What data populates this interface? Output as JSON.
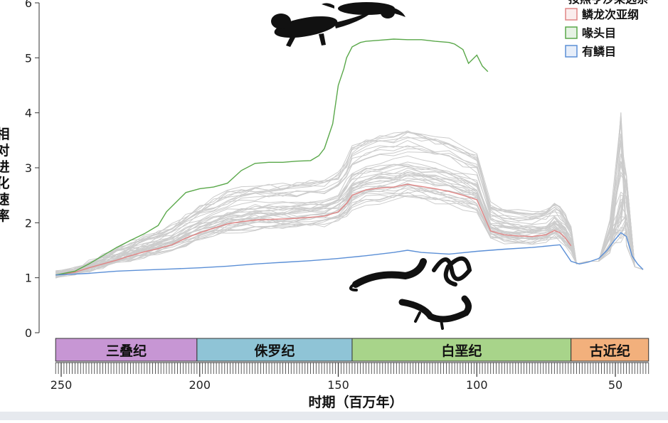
{
  "chart_data": {
    "type": "line",
    "title": "",
    "xlabel": "时期（百万年）",
    "ylabel": "相对进化速率",
    "xlim": [
      255,
      38
    ],
    "ylim": [
      0,
      6
    ],
    "x_ticks": [
      250,
      200,
      150,
      100,
      50
    ],
    "y_ticks": [
      0,
      1,
      2,
      3,
      4,
      5,
      6
    ],
    "grid": false,
    "legend_position": "top-right",
    "legend_header": "按照亨沙莱选系",
    "periods": [
      {
        "name": "三叠纪",
        "start": 252,
        "end": 201,
        "color": "#c796d4"
      },
      {
        "name": "侏罗纪",
        "start": 201,
        "end": 145,
        "color": "#8fc4d6"
      },
      {
        "name": "白垩纪",
        "start": 145,
        "end": 66,
        "color": "#a8d48a"
      },
      {
        "name": "古近纪",
        "start": 66,
        "end": 38,
        "color": "#f2b07c"
      }
    ],
    "series": [
      {
        "name": "鳞龙次亚纲",
        "color": "#e08585",
        "x": [
          252,
          245,
          240,
          235,
          230,
          225,
          220,
          215,
          210,
          205,
          200,
          195,
          190,
          185,
          180,
          175,
          170,
          165,
          160,
          155,
          150,
          147,
          145,
          140,
          135,
          130,
          125,
          120,
          115,
          110,
          105,
          100,
          95,
          90,
          85,
          80,
          75,
          72,
          70,
          68,
          66
        ],
        "values": [
          1.05,
          1.1,
          1.18,
          1.25,
          1.32,
          1.4,
          1.47,
          1.53,
          1.6,
          1.72,
          1.82,
          1.9,
          1.98,
          2.02,
          2.05,
          2.06,
          2.07,
          2.08,
          2.1,
          2.12,
          2.2,
          2.35,
          2.5,
          2.6,
          2.63,
          2.65,
          2.7,
          2.66,
          2.62,
          2.57,
          2.5,
          2.42,
          1.85,
          1.78,
          1.76,
          1.75,
          1.78,
          1.86,
          1.82,
          1.72,
          1.58
        ]
      },
      {
        "name": "喙头目",
        "color": "#5aa84a",
        "x": [
          252,
          245,
          240,
          235,
          230,
          225,
          220,
          215,
          212,
          208,
          205,
          200,
          195,
          190,
          185,
          180,
          175,
          170,
          165,
          160,
          157,
          155,
          152,
          150,
          148,
          147,
          145,
          142,
          140,
          135,
          130,
          125,
          120,
          115,
          110,
          108,
          105,
          103,
          100,
          98,
          96
        ],
        "values": [
          1.05,
          1.12,
          1.25,
          1.4,
          1.55,
          1.68,
          1.8,
          1.95,
          2.2,
          2.4,
          2.55,
          2.62,
          2.65,
          2.72,
          2.95,
          3.08,
          3.1,
          3.1,
          3.12,
          3.13,
          3.22,
          3.35,
          3.8,
          4.5,
          4.8,
          5.0,
          5.2,
          5.28,
          5.3,
          5.32,
          5.34,
          5.33,
          5.33,
          5.3,
          5.28,
          5.25,
          5.15,
          4.9,
          5.05,
          4.85,
          4.75
        ]
      },
      {
        "name": "有鳞目",
        "color": "#5b8fd6",
        "x": [
          252,
          240,
          230,
          220,
          210,
          200,
          190,
          180,
          170,
          160,
          150,
          140,
          130,
          125,
          120,
          110,
          100,
          90,
          80,
          70,
          66,
          63,
          60,
          56,
          53,
          50,
          48,
          46,
          44,
          42,
          40
        ],
        "values": [
          1.05,
          1.08,
          1.12,
          1.14,
          1.16,
          1.18,
          1.21,
          1.25,
          1.28,
          1.31,
          1.35,
          1.4,
          1.46,
          1.5,
          1.46,
          1.43,
          1.48,
          1.52,
          1.55,
          1.6,
          1.3,
          1.25,
          1.28,
          1.35,
          1.5,
          1.7,
          1.82,
          1.75,
          1.4,
          1.25,
          1.15
        ]
      }
    ],
    "background_lines": {
      "color": "#cccccc",
      "description_count": 40
    }
  }
}
